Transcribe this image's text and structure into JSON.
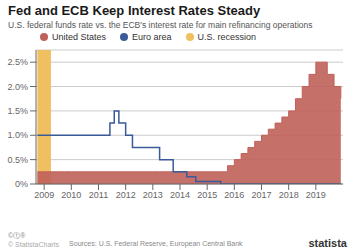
{
  "chart_data": {
    "type": "line",
    "title": "Fed and ECB Keep Interest Rates Steady",
    "subtitle": "U.S. federal funds rate vs. the ECB's interest rate for main refinancing operations",
    "annotations": [
      "Sources: U.S. Federal Reserve, European Central Bank",
      "©ⓕ®",
      "© StatistaCharts",
      "statista"
    ],
    "series": [
      {
        "name": "United States",
        "type": "area",
        "color": "#c0605a",
        "line_style": "step",
        "x": [
          2008.75,
          2009.0,
          2009.25,
          2009.5,
          2009.75,
          2010.0,
          2010.25,
          2010.5,
          2010.75,
          2011.0,
          2011.25,
          2011.5,
          2011.75,
          2012.0,
          2012.25,
          2012.5,
          2012.75,
          2013.0,
          2013.25,
          2013.5,
          2013.75,
          2014.0,
          2014.25,
          2014.5,
          2014.75,
          2015.0,
          2015.25,
          2015.5,
          2015.75,
          2016.0,
          2016.25,
          2016.5,
          2016.75,
          2017.0,
          2017.25,
          2017.5,
          2017.75,
          2018.0,
          2018.25,
          2018.5,
          2018.75,
          2019.0,
          2019.17,
          2019.42,
          2019.67,
          2019.92
        ],
        "values": [
          0.25,
          0.25,
          0.25,
          0.25,
          0.25,
          0.25,
          0.25,
          0.25,
          0.25,
          0.25,
          0.25,
          0.25,
          0.25,
          0.25,
          0.25,
          0.25,
          0.25,
          0.25,
          0.25,
          0.25,
          0.25,
          0.25,
          0.25,
          0.25,
          0.25,
          0.25,
          0.25,
          0.25,
          0.375,
          0.5,
          0.625,
          0.75,
          0.875,
          1.0,
          1.125,
          1.25,
          1.375,
          1.5,
          1.75,
          2.0,
          2.25,
          2.5,
          2.5,
          2.25,
          2.0,
          1.75
        ]
      },
      {
        "name": "Euro area",
        "type": "line",
        "color": "#3a5a9a",
        "line_style": "step",
        "x": [
          2008.75,
          2009.0,
          2009.25,
          2009.5,
          2009.75,
          2010.0,
          2010.25,
          2010.5,
          2010.75,
          2011.0,
          2011.25,
          2011.42,
          2011.58,
          2011.75,
          2012.0,
          2012.25,
          2012.58,
          2012.75,
          2013.0,
          2013.25,
          2013.58,
          2013.75,
          2014.0,
          2014.25,
          2014.42,
          2014.58,
          2014.75,
          2015.0,
          2015.25,
          2015.5,
          2015.75,
          2016.0,
          2016.25,
          2016.5,
          2016.75,
          2017.0,
          2017.25,
          2017.5,
          2017.75,
          2018.0,
          2018.25,
          2018.5,
          2018.75,
          2019.0,
          2019.92
        ],
        "values": [
          1.0,
          1.0,
          1.0,
          1.0,
          1.0,
          1.0,
          1.0,
          1.0,
          1.0,
          1.0,
          1.0,
          1.25,
          1.5,
          1.25,
          1.0,
          0.75,
          0.75,
          0.75,
          0.75,
          0.5,
          0.5,
          0.25,
          0.25,
          0.15,
          0.15,
          0.05,
          0.05,
          0.05,
          0.05,
          0.0,
          0.0,
          0.0,
          0.0,
          0.0,
          0.0,
          0.0,
          0.0,
          0.0,
          0.0,
          0.0,
          0.0,
          0.0,
          0.0,
          0.0,
          0.0
        ]
      }
    ],
    "recession": {
      "name": "U.S. recession",
      "start": 2008.75,
      "end": 2009.25,
      "color": "#f0c060"
    },
    "xlim": [
      2008.7,
      2020.0
    ],
    "xticks": [
      2009,
      2010,
      2011,
      2012,
      2013,
      2014,
      2015,
      2016,
      2017,
      2018,
      2019
    ],
    "ylim": [
      0.0,
      2.75
    ],
    "yticks": [
      {
        "value": 0.0,
        "label": "0%"
      },
      {
        "value": 0.5,
        "label": "0.5%"
      },
      {
        "value": 1.0,
        "label": "1.0%"
      },
      {
        "value": 1.5,
        "label": "1.5%"
      },
      {
        "value": 2.0,
        "label": "2.0%"
      },
      {
        "value": 2.5,
        "label": "2.5%"
      }
    ],
    "grid": true,
    "legend": "top"
  }
}
